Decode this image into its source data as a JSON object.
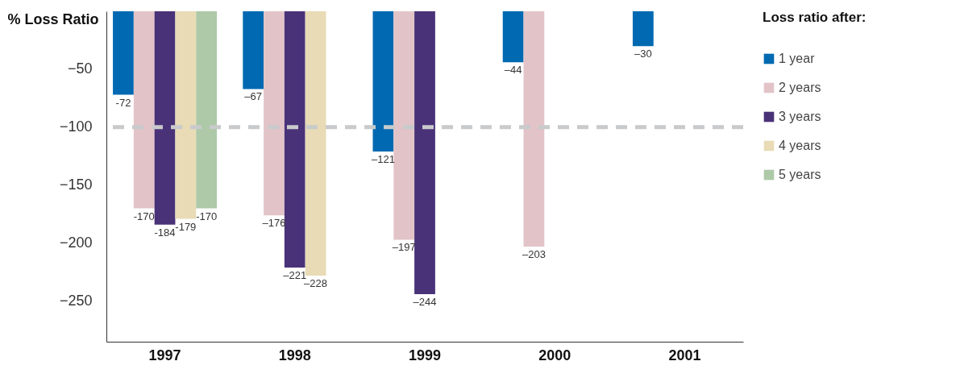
{
  "chart_data": {
    "type": "bar",
    "ylabel": "% Loss Ratio",
    "legend_title": "Loss ratio after:",
    "categories": [
      "1997",
      "1998",
      "1999",
      "2000",
      "2001"
    ],
    "series": [
      {
        "name": "1 year",
        "color": "#0069b1",
        "values": [
          -72,
          -67,
          -121,
          -44,
          -30
        ],
        "value_labels": [
          "-72",
          "–67",
          "–121",
          "–44",
          "–30"
        ]
      },
      {
        "name": "2 years",
        "color": "#e2c4c8",
        "values": [
          -170,
          -176,
          -197,
          -203,
          null
        ],
        "value_labels": [
          "-170",
          "–176",
          "–197",
          "–203",
          null
        ]
      },
      {
        "name": "3 years",
        "color": "#4a3278",
        "values": [
          -184,
          -221,
          -244,
          null,
          null
        ],
        "value_labels": [
          "-184",
          "–221",
          "–244",
          null,
          null
        ]
      },
      {
        "name": "4 years",
        "color": "#e8dbb6",
        "values": [
          -179,
          -228,
          null,
          null,
          null
        ],
        "value_labels": [
          "-179",
          "–228",
          null,
          null,
          null
        ]
      },
      {
        "name": "5 years",
        "color": "#adc9a8",
        "values": [
          -170,
          null,
          null,
          null,
          null
        ],
        "value_labels": [
          "-170",
          null,
          null,
          null,
          null
        ]
      }
    ],
    "ylim": [
      -285,
      0
    ],
    "yticks": [
      -50,
      -100,
      -150,
      -200,
      -250
    ],
    "ref_lines": [
      {
        "axis": "y",
        "value": -100,
        "color": "#c8cacc",
        "line_style": "dashed"
      }
    ],
    "legend": "right",
    "grid": false
  }
}
